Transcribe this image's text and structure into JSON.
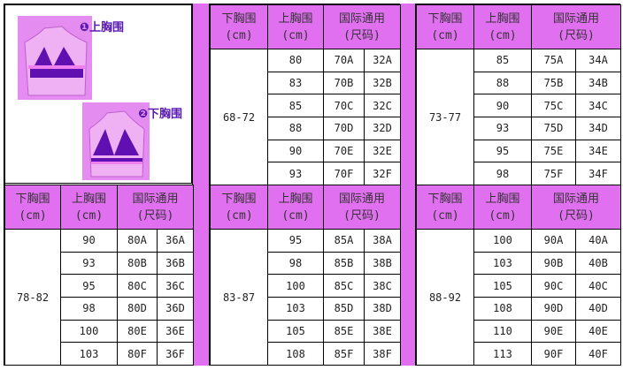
{
  "colors": {
    "header_bg": "#e070f0",
    "bra": "#6010b0",
    "band": "#f080f0"
  },
  "photo": {
    "label_upper": "❶上胸围",
    "label_lower": "❷下胸围",
    "icon": "bra-measurement-illustration"
  },
  "headers": {
    "under": "下胸围",
    "under_unit": "(cm)",
    "bust": "上胸围",
    "bust_unit": "(cm)",
    "intl": "国际通用",
    "intl_sub": "(尺码)"
  },
  "groups": [
    {
      "id": "68-72",
      "under": "68-72",
      "rows": [
        [
          "80",
          "70A",
          "32A"
        ],
        [
          "83",
          "70B",
          "32B"
        ],
        [
          "85",
          "70C",
          "32C"
        ],
        [
          "88",
          "70D",
          "32D"
        ],
        [
          "90",
          "70E",
          "32E"
        ],
        [
          "93",
          "70F",
          "32F"
        ]
      ]
    },
    {
      "id": "73-77",
      "under": "73-77",
      "rows": [
        [
          "85",
          "75A",
          "34A"
        ],
        [
          "88",
          "75B",
          "34B"
        ],
        [
          "90",
          "75C",
          "34C"
        ],
        [
          "93",
          "75D",
          "34D"
        ],
        [
          "95",
          "75E",
          "34E"
        ],
        [
          "98",
          "75F",
          "34F"
        ]
      ]
    },
    {
      "id": "78-82",
      "under": "78-82",
      "rows": [
        [
          "90",
          "80A",
          "36A"
        ],
        [
          "93",
          "80B",
          "36B"
        ],
        [
          "95",
          "80C",
          "36C"
        ],
        [
          "98",
          "80D",
          "36D"
        ],
        [
          "100",
          "80E",
          "36E"
        ],
        [
          "103",
          "80F",
          "36F"
        ]
      ]
    },
    {
      "id": "83-87",
      "under": "83-87",
      "rows": [
        [
          "95",
          "85A",
          "38A"
        ],
        [
          "98",
          "85B",
          "38B"
        ],
        [
          "100",
          "85C",
          "38C"
        ],
        [
          "103",
          "85D",
          "38D"
        ],
        [
          "105",
          "85E",
          "38E"
        ],
        [
          "108",
          "85F",
          "38F"
        ]
      ]
    },
    {
      "id": "88-92",
      "under": "88-92",
      "rows": [
        [
          "100",
          "90A",
          "40A"
        ],
        [
          "103",
          "90B",
          "40B"
        ],
        [
          "105",
          "90C",
          "40C"
        ],
        [
          "108",
          "90D",
          "40D"
        ],
        [
          "110",
          "90E",
          "40E"
        ],
        [
          "113",
          "90F",
          "40F"
        ]
      ]
    }
  ]
}
